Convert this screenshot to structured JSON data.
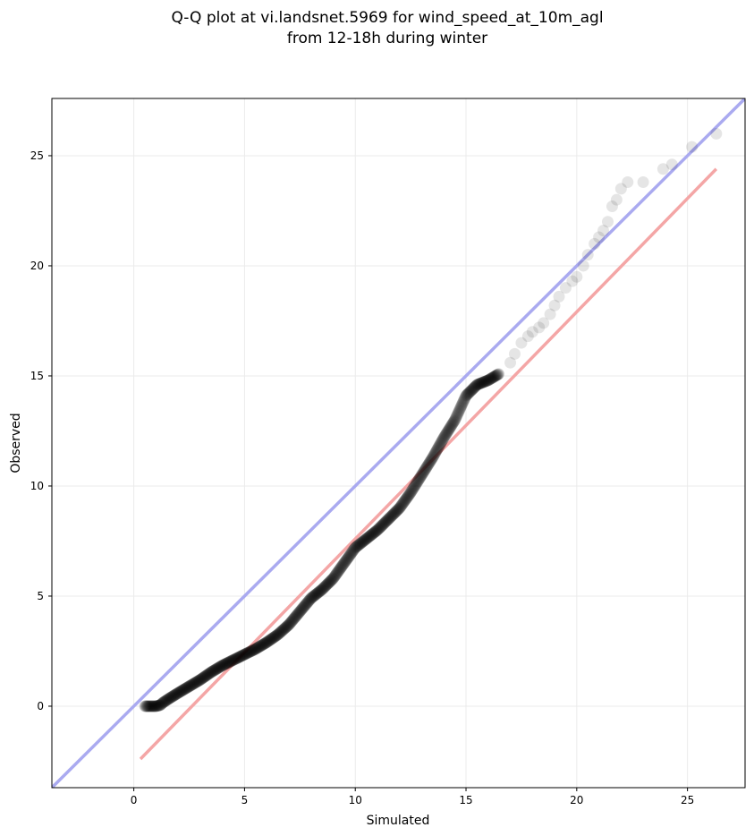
{
  "chart_data": {
    "type": "scatter",
    "title_line1": "Q-Q plot at vi.landsnet.5969 for wind_speed_at_10m_agl",
    "title_line2": "from 12-18h during winter",
    "xlabel": "Simulated",
    "ylabel": "Observed",
    "xlim": [
      -3.7,
      27.6
    ],
    "ylim": [
      -3.7,
      27.6
    ],
    "xticks": [
      0,
      5,
      10,
      15,
      20,
      25
    ],
    "yticks": [
      0,
      5,
      10,
      15,
      20,
      25
    ],
    "grid": true,
    "reference_line": {
      "name": "",
      "color": "#aaaaf0",
      "from": [
        -3.7,
        -3.7
      ],
      "to": [
        27.6,
        27.6
      ]
    },
    "fit_line": {
      "name": "",
      "color": "#f4a6a6",
      "from": [
        0.3,
        -2.4
      ],
      "to": [
        26.3,
        24.4
      ]
    },
    "point_color": "#000000",
    "points_dense": {
      "curve": [
        [
          0.5,
          0.0
        ],
        [
          0.8,
          0.0
        ],
        [
          1.0,
          0.0
        ],
        [
          1.2,
          0.05
        ],
        [
          1.3,
          0.15
        ],
        [
          1.6,
          0.35
        ],
        [
          2.0,
          0.6
        ],
        [
          2.5,
          0.9
        ],
        [
          3.0,
          1.2
        ],
        [
          3.5,
          1.55
        ],
        [
          4.0,
          1.85
        ],
        [
          4.5,
          2.1
        ],
        [
          5.0,
          2.35
        ],
        [
          5.5,
          2.6
        ],
        [
          6.0,
          2.9
        ],
        [
          6.5,
          3.25
        ],
        [
          7.0,
          3.7
        ],
        [
          7.5,
          4.3
        ],
        [
          8.0,
          4.9
        ],
        [
          8.5,
          5.3
        ],
        [
          9.0,
          5.8
        ],
        [
          9.5,
          6.5
        ],
        [
          10.0,
          7.2
        ],
        [
          10.5,
          7.6
        ],
        [
          11.0,
          8.0
        ],
        [
          11.5,
          8.5
        ],
        [
          12.0,
          9.0
        ],
        [
          12.5,
          9.7
        ],
        [
          13.0,
          10.5
        ],
        [
          13.5,
          11.3
        ],
        [
          14.0,
          12.2
        ],
        [
          14.5,
          13.0
        ],
        [
          15.0,
          14.1
        ],
        [
          15.5,
          14.6
        ],
        [
          16.0,
          14.8
        ],
        [
          16.5,
          15.1
        ]
      ],
      "step": 0.02
    },
    "points_sparse": [
      [
        17.0,
        15.6
      ],
      [
        17.2,
        16.0
      ],
      [
        17.5,
        16.5
      ],
      [
        17.8,
        16.8
      ],
      [
        18.0,
        17.0
      ],
      [
        18.3,
        17.2
      ],
      [
        18.5,
        17.4
      ],
      [
        18.8,
        17.8
      ],
      [
        19.0,
        18.2
      ],
      [
        19.2,
        18.6
      ],
      [
        19.5,
        19.0
      ],
      [
        19.8,
        19.3
      ],
      [
        20.0,
        19.5
      ],
      [
        20.3,
        20.0
      ],
      [
        20.5,
        20.5
      ],
      [
        20.8,
        21.0
      ],
      [
        21.0,
        21.3
      ],
      [
        21.2,
        21.6
      ],
      [
        21.4,
        22.0
      ],
      [
        21.6,
        22.7
      ],
      [
        21.8,
        23.0
      ],
      [
        22.0,
        23.5
      ],
      [
        22.3,
        23.8
      ],
      [
        23.0,
        23.8
      ],
      [
        23.9,
        24.4
      ],
      [
        24.3,
        24.6
      ],
      [
        25.2,
        25.4
      ],
      [
        26.3,
        26.0
      ]
    ]
  }
}
